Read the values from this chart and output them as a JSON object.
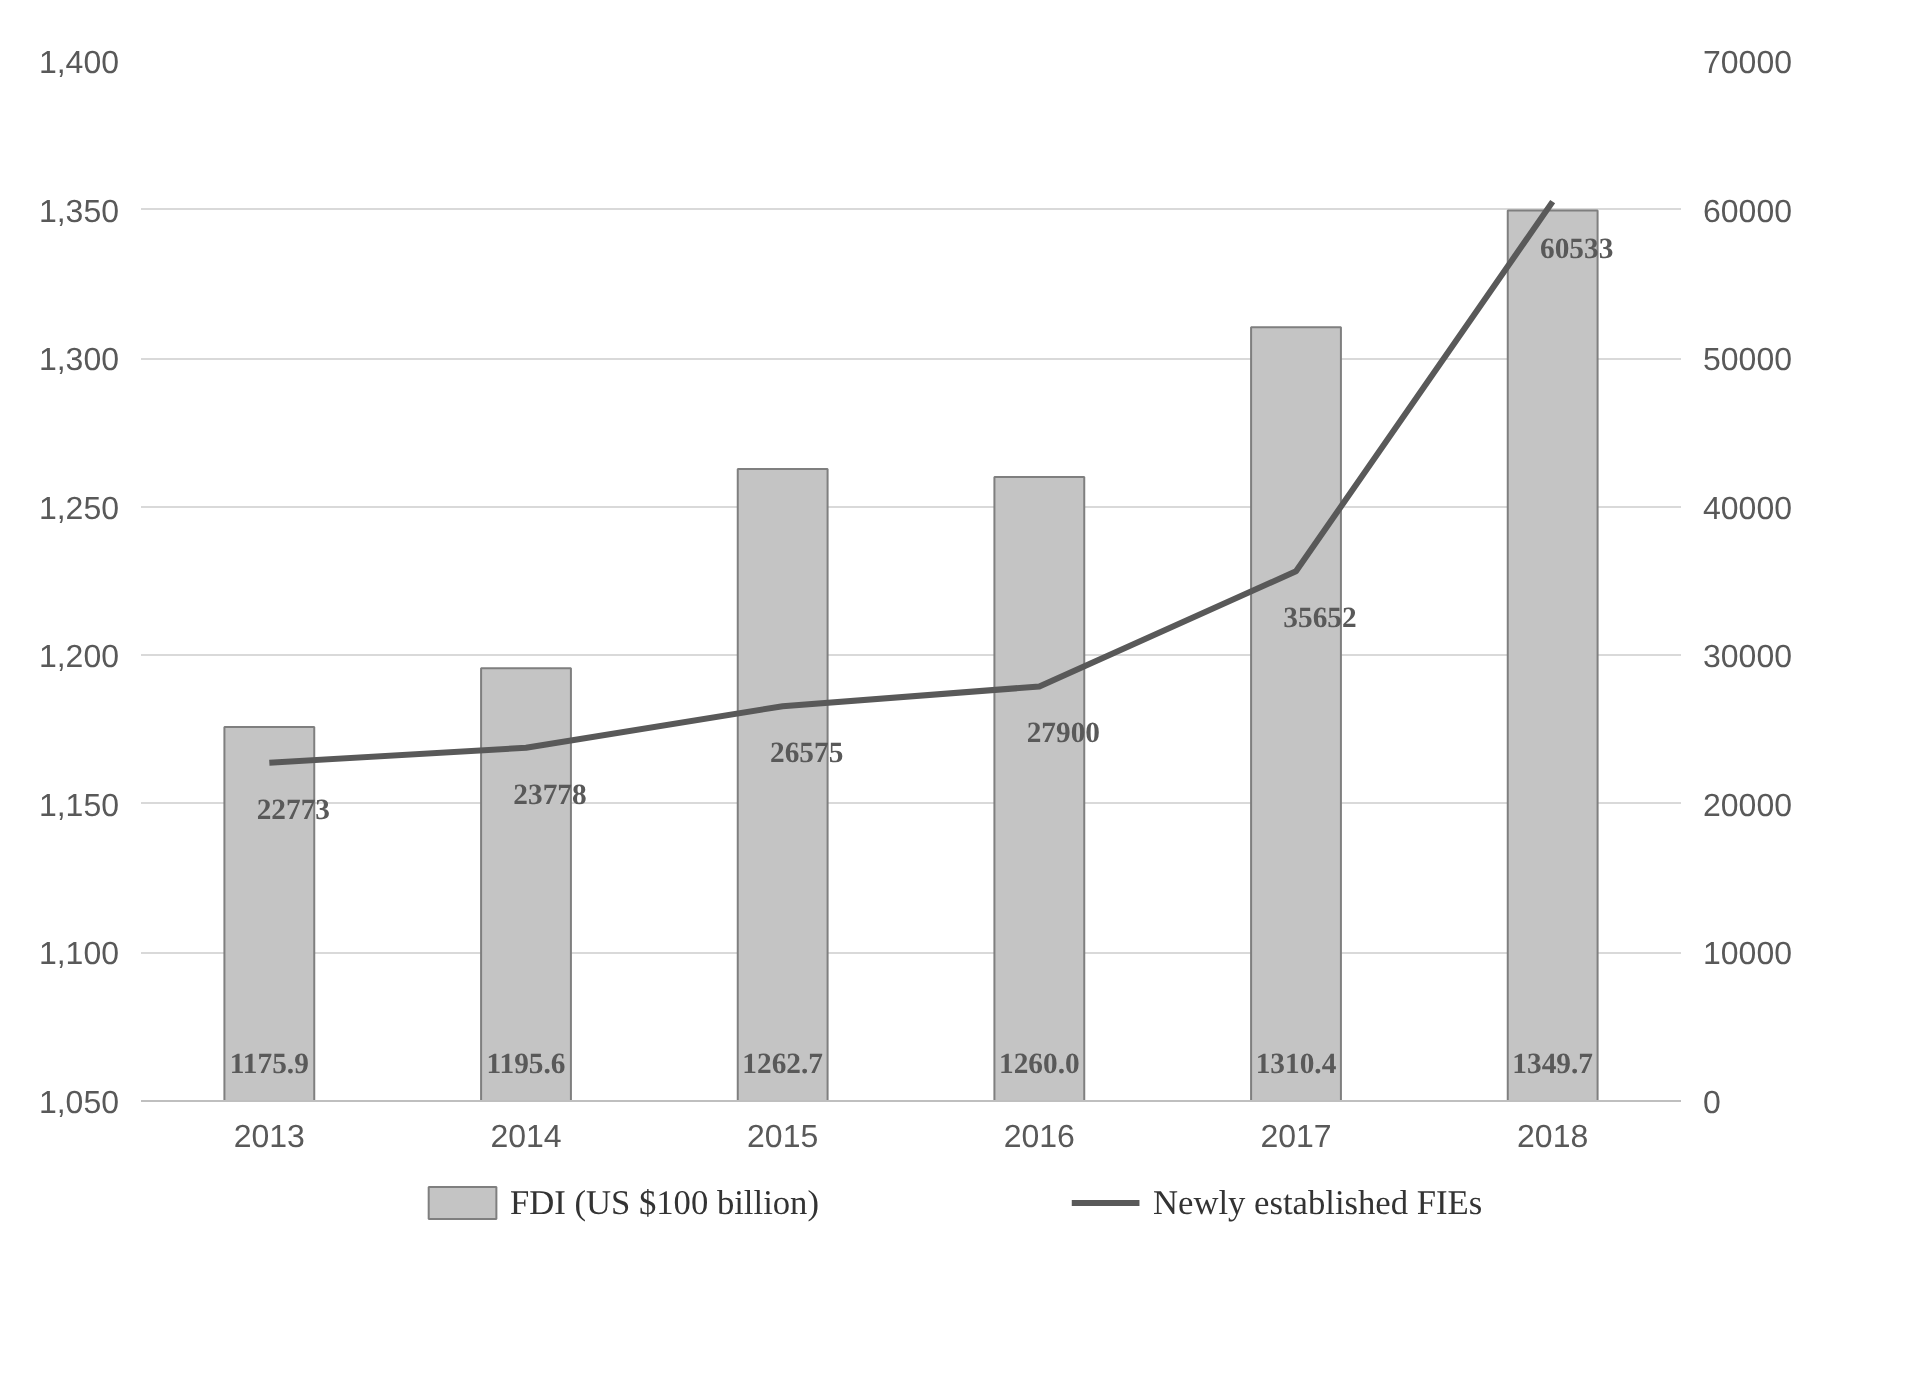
{
  "chart_data": {
    "type": "bar",
    "categories": [
      "2013",
      "2014",
      "2015",
      "2016",
      "2017",
      "2018"
    ],
    "series": [
      {
        "name": "FDI (US $100 billion)",
        "color": "#c4c4c4",
        "values": [
          1175.9,
          1195.6,
          1262.7,
          1260.0,
          1310.4,
          1349.7
        ],
        "value_labels": [
          "1175.9",
          "1195.6",
          "1262.7",
          "1260.0",
          "1310.4",
          "1349.7"
        ]
      },
      {
        "name": "Newly established FIEs",
        "type": "line",
        "axis": "y2",
        "color": "#595959",
        "values": [
          22773,
          23778,
          26575,
          27900,
          35652,
          60533
        ],
        "value_labels": [
          "22773",
          "23778",
          "26575",
          "27900",
          "35652",
          "60533"
        ]
      }
    ],
    "ylim": [
      1050,
      1400
    ],
    "yticks": [
      {
        "value": 1050,
        "label": "1,050"
      },
      {
        "value": 1100,
        "label": "1,100"
      },
      {
        "value": 1150,
        "label": "1,150"
      },
      {
        "value": 1200,
        "label": "1,200"
      },
      {
        "value": 1250,
        "label": "1,250"
      },
      {
        "value": 1300,
        "label": "1,300"
      },
      {
        "value": 1350,
        "label": "1,350"
      },
      {
        "value": 1400,
        "label": "1,400"
      }
    ],
    "y2lim": [
      0,
      70000
    ],
    "y2ticks": [
      0,
      10000,
      20000,
      30000,
      40000,
      50000,
      60000,
      70000
    ],
    "grid": "y",
    "legend": "bottom"
  }
}
